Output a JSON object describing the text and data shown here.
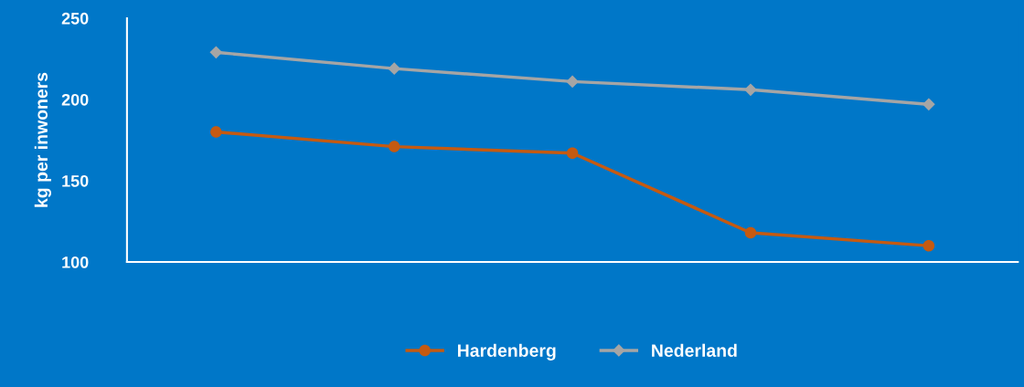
{
  "chart_data": {
    "type": "line",
    "ylabel": "kg per inwoners",
    "categories": [
      null,
      null,
      null,
      null,
      null
    ],
    "series": [
      {
        "name": "Hardenberg",
        "color": "#c55a11",
        "marker": "circle",
        "values": [
          180,
          171,
          167,
          118,
          110
        ]
      },
      {
        "name": "Nederland",
        "color": "#a5a5a5",
        "marker": "diamond",
        "values": [
          229,
          219,
          211,
          206,
          197
        ]
      }
    ],
    "ylim": [
      100,
      250
    ],
    "yticks": [
      100,
      150,
      200,
      250
    ],
    "grid": false,
    "legend": "bottom",
    "line_style": "solid"
  }
}
